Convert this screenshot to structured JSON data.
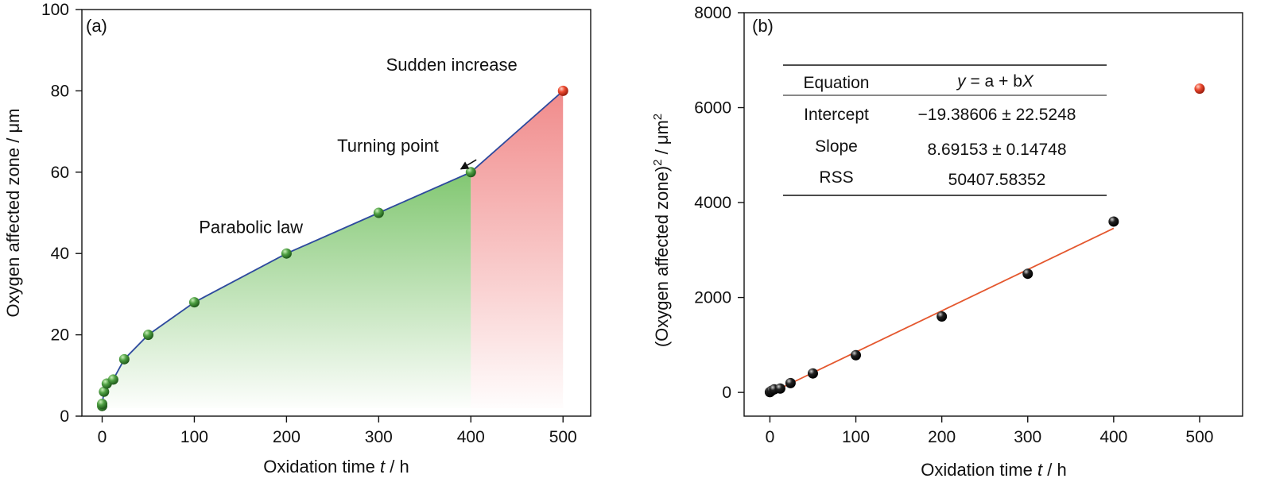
{
  "chart_data": [
    {
      "type": "area",
      "panel_label": "(a)",
      "xlabel_pre": "Oxidation time ",
      "xlabel_var": "t",
      "xlabel_post": " / h",
      "ylabel": "Oxygen affected zone / μm",
      "xlim": [
        -22,
        530
      ],
      "ylim": [
        0,
        100
      ],
      "xticks": [
        0,
        100,
        200,
        300,
        400,
        500
      ],
      "yticks": [
        0,
        20,
        40,
        60,
        80,
        100
      ],
      "series": [
        {
          "x": [
            0,
            0,
            2,
            5,
            12,
            24,
            50,
            100,
            200,
            300,
            400
          ],
          "y": [
            2.5,
            3,
            6,
            8,
            9,
            14,
            20,
            28,
            40,
            50,
            60
          ],
          "marker_color": "#3e8f35"
        },
        {
          "x": [
            500
          ],
          "y": [
            80
          ],
          "marker_color": "#e8412d"
        }
      ],
      "line_color": "#2e4a9e",
      "green_fill": "#7bc46a",
      "red_fill": "#f08585",
      "annotations": [
        {
          "text": "Parabolic law",
          "x": 105,
          "y": 45
        },
        {
          "text": "Turning point",
          "x": 255,
          "y": 65,
          "arrow_to_x": 396,
          "arrow_to_y": 60
        },
        {
          "text": "Sudden increase",
          "x": 308,
          "y": 85
        }
      ]
    },
    {
      "type": "scatter",
      "panel_label": "(b)",
      "xlabel_pre": "Oxidation time ",
      "xlabel_var": "t",
      "xlabel_post": " / h",
      "ylabel_main": "(Oxygen affected zone)",
      "ylabel_sup": "2",
      "ylabel_mid": " / μm",
      "ylabel_sup2": "2",
      "xlim": [
        -30,
        550
      ],
      "ylim": [
        -500,
        8000
      ],
      "xticks": [
        0,
        100,
        200,
        300,
        400,
        500
      ],
      "yticks": [
        0,
        2000,
        4000,
        6000,
        8000
      ],
      "points_fit": {
        "x": [
          0,
          0,
          2,
          5,
          12,
          24,
          50,
          100,
          200,
          300,
          400
        ],
        "y": [
          6.25,
          9,
          36,
          64,
          81,
          196,
          400,
          784,
          1600,
          2500,
          3600
        ],
        "color": "#111111"
      },
      "points_excluded": {
        "x": [
          500
        ],
        "y": [
          6400
        ],
        "color": "#e8412d"
      },
      "fit_line": {
        "x": [
          0,
          400
        ],
        "intercept": -19.38606,
        "slope": 8.69153,
        "color": "#e4572e"
      },
      "fit_table": {
        "header_label": "Equation",
        "header_value": "y = a + bX",
        "rows": [
          {
            "label": "Intercept",
            "value": "−19.38606 ± 22.5248"
          },
          {
            "label": "Slope",
            "value": "8.69153 ± 0.14748"
          },
          {
            "label": "RSS",
            "value": "50407.58352"
          }
        ]
      }
    }
  ]
}
